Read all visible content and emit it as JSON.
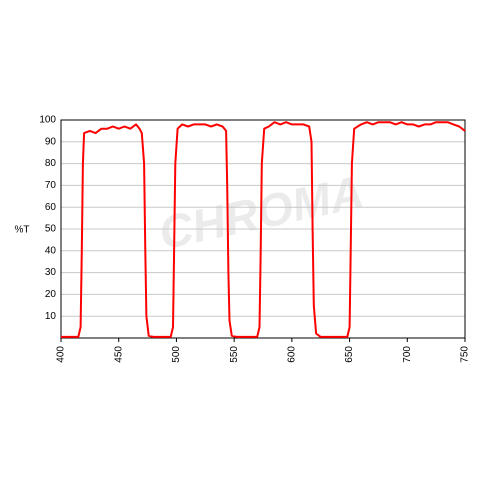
{
  "chart_data": {
    "type": "line",
    "watermark": "CHROMA",
    "ylabel": "%T",
    "color": "#ff0000",
    "x": [
      400,
      415,
      417,
      418,
      419,
      420,
      425,
      430,
      435,
      440,
      445,
      450,
      455,
      460,
      465,
      468,
      470,
      472,
      473,
      474,
      476,
      480,
      495,
      497,
      498,
      499,
      501,
      505,
      510,
      515,
      520,
      525,
      530,
      535,
      540,
      543,
      544,
      545,
      546,
      548,
      552,
      570,
      572,
      573,
      574,
      576,
      580,
      585,
      590,
      595,
      600,
      605,
      610,
      615,
      617,
      618,
      619,
      621,
      625,
      648,
      650,
      651,
      652,
      654,
      660,
      665,
      670,
      675,
      680,
      685,
      690,
      695,
      700,
      705,
      710,
      715,
      720,
      725,
      730,
      735,
      740,
      745,
      750
    ],
    "values": [
      0.5,
      0.5,
      5,
      40,
      80,
      94,
      95,
      94,
      96,
      96,
      97,
      96,
      97,
      96,
      98,
      96,
      94,
      80,
      40,
      10,
      1,
      0.5,
      0.5,
      5,
      40,
      80,
      96,
      98,
      97,
      98,
      98,
      98,
      97,
      98,
      97,
      95,
      70,
      30,
      8,
      1,
      0.5,
      0.5,
      5,
      40,
      80,
      96,
      97,
      99,
      98,
      99,
      98,
      98,
      98,
      97,
      90,
      50,
      15,
      2,
      0.5,
      0.5,
      5,
      40,
      80,
      96,
      98,
      99,
      98,
      99,
      99,
      99,
      98,
      99,
      98,
      98,
      97,
      98,
      98,
      99,
      99,
      99,
      98,
      97,
      95
    ],
    "xlim": [
      400,
      750
    ],
    "xticks": [
      400,
      450,
      500,
      550,
      600,
      650,
      700,
      750
    ],
    "ylim": [
      0,
      100
    ],
    "yticks": [
      10,
      20,
      30,
      40,
      50,
      60,
      70,
      80,
      90,
      100
    ],
    "grid": true
  }
}
